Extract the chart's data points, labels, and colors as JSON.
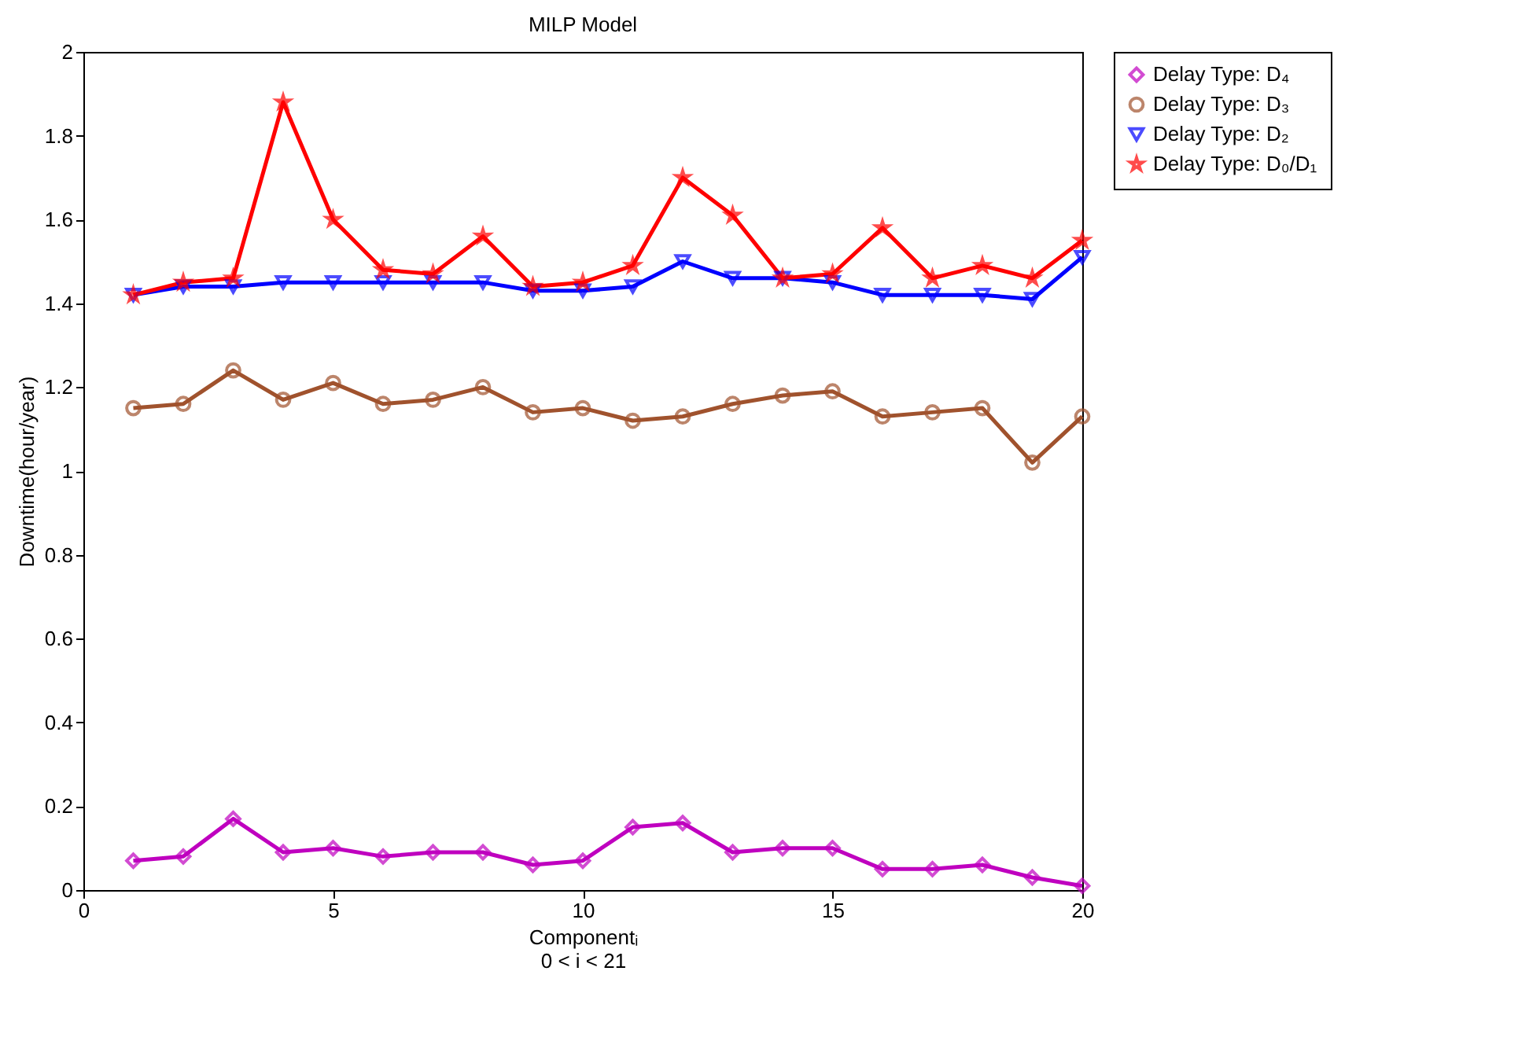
{
  "chart_data": {
    "type": "line",
    "title": "MILP Model",
    "xlabel": "Componentᵢ",
    "ylabel": "Downtime(hour/year)",
    "annotations": [
      "0 < i < 21"
    ],
    "x": [
      1,
      2,
      3,
      4,
      5,
      6,
      7,
      8,
      9,
      10,
      11,
      12,
      13,
      14,
      15,
      16,
      17,
      18,
      19,
      20
    ],
    "series": [
      {
        "name": "Delay Type: D₄",
        "color": "#bf00bf",
        "marker": "diamond",
        "values": [
          0.07,
          0.08,
          0.17,
          0.09,
          0.1,
          0.08,
          0.09,
          0.09,
          0.06,
          0.07,
          0.15,
          0.16,
          0.09,
          0.1,
          0.1,
          0.05,
          0.05,
          0.06,
          0.03,
          0.01
        ]
      },
      {
        "name": "Delay Type: D₃",
        "color": "#a0522d",
        "marker": "circle",
        "values": [
          1.15,
          1.16,
          1.24,
          1.17,
          1.21,
          1.16,
          1.17,
          1.2,
          1.14,
          1.15,
          1.12,
          1.13,
          1.16,
          1.18,
          1.19,
          1.13,
          1.14,
          1.15,
          1.02,
          1.13
        ]
      },
      {
        "name": "Delay Type: D₂",
        "color": "#0000ff",
        "marker": "triangle",
        "values": [
          1.42,
          1.44,
          1.44,
          1.45,
          1.45,
          1.45,
          1.45,
          1.45,
          1.43,
          1.43,
          1.44,
          1.5,
          1.46,
          1.46,
          1.45,
          1.42,
          1.42,
          1.42,
          1.41,
          1.51
        ]
      },
      {
        "name": "Delay Type: D₀/D₁",
        "color": "#ff0000",
        "marker": "star",
        "values": [
          1.42,
          1.45,
          1.46,
          1.88,
          1.6,
          1.48,
          1.47,
          1.56,
          1.44,
          1.45,
          1.49,
          1.7,
          1.61,
          1.46,
          1.47,
          1.58,
          1.46,
          1.49,
          1.46,
          1.55
        ]
      }
    ],
    "xlim": [
      0,
      20
    ],
    "xticks": [
      0,
      5,
      10,
      15,
      20
    ],
    "ylim": [
      0,
      2
    ],
    "yticks": [
      0,
      0.2,
      0.4,
      0.6,
      0.8,
      1,
      1.2,
      1.4,
      1.6,
      1.8,
      2
    ],
    "grid": false,
    "legend": "top right",
    "line_style": "solid"
  }
}
